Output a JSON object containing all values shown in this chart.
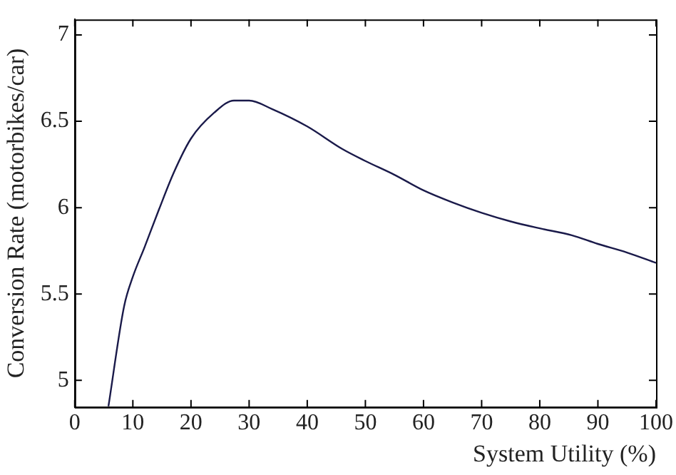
{
  "chart_data": {
    "type": "line",
    "xlabel": "System Utility (%)",
    "ylabel": "Conversion Rate (motorbikes/car)",
    "x": [
      5.8,
      8.5,
      10,
      12,
      14.5,
      17,
      20,
      24,
      27.4,
      30,
      34,
      40,
      46,
      50,
      55,
      60,
      65,
      70,
      75,
      80,
      85.5,
      90,
      95,
      100
    ],
    "series": [
      {
        "color": "#1a1a4a",
        "values": [
          4.85,
          5.43,
          5.6,
          5.77,
          5.99,
          6.2,
          6.4,
          6.55,
          6.62,
          6.62,
          6.57,
          6.47,
          6.34,
          6.27,
          6.19,
          6.1,
          6.03,
          5.97,
          5.92,
          5.88,
          5.84,
          5.79,
          5.74,
          5.68
        ]
      }
    ],
    "xlim": [
      0,
      100
    ],
    "xticks": [
      0,
      10,
      20,
      30,
      40,
      50,
      60,
      70,
      80,
      90,
      100
    ],
    "ylim": [
      4.845,
      7.09
    ],
    "yticks": [
      5,
      5.5,
      6,
      6.5,
      7
    ],
    "grid": false,
    "legend": false,
    "marker": "none",
    "line_style": "solid"
  }
}
